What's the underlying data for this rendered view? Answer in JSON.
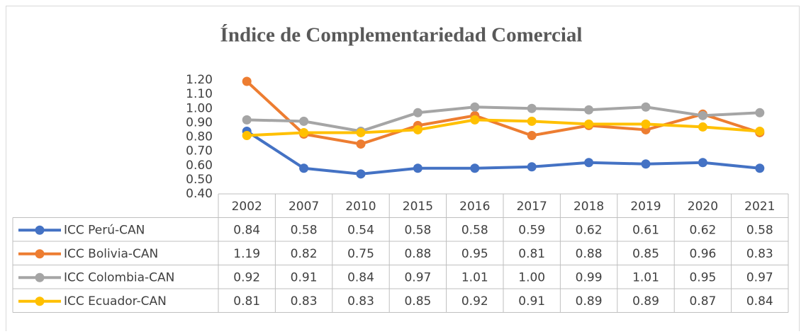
{
  "chart_data": {
    "type": "line",
    "title": "Índice de Complementariedad Comercial",
    "categories": [
      "2002",
      "2007",
      "2010",
      "2015",
      "2016",
      "2017",
      "2018",
      "2019",
      "2020",
      "2021"
    ],
    "series": [
      {
        "name": "ICC Perú-CAN",
        "color": "#4472c4",
        "values": [
          0.84,
          0.58,
          0.54,
          0.58,
          0.58,
          0.59,
          0.62,
          0.61,
          0.62,
          0.58
        ],
        "value_labels": [
          "0.84",
          "0.58",
          "0.54",
          "0.58",
          "0.58",
          "0.59",
          "0.62",
          "0.61",
          "0.62",
          "0.58"
        ]
      },
      {
        "name": "ICC Bolivia-CAN",
        "color": "#ed7d31",
        "values": [
          1.19,
          0.82,
          0.75,
          0.88,
          0.95,
          0.81,
          0.88,
          0.85,
          0.96,
          0.83
        ],
        "value_labels": [
          "1.19",
          "0.82",
          "0.75",
          "0.88",
          "0.95",
          "0.81",
          "0.88",
          "0.85",
          "0.96",
          "0.83"
        ]
      },
      {
        "name": "ICC Colombia-CAN",
        "color": "#a5a5a5",
        "values": [
          0.92,
          0.91,
          0.84,
          0.97,
          1.01,
          1.0,
          0.99,
          1.01,
          0.95,
          0.97
        ],
        "value_labels": [
          "0.92",
          "0.91",
          "0.84",
          "0.97",
          "1.01",
          "1.00",
          "0.99",
          "1.01",
          "0.95",
          "0.97"
        ]
      },
      {
        "name": "ICC Ecuador-CAN",
        "color": "#ffc000",
        "values": [
          0.81,
          0.83,
          0.83,
          0.85,
          0.92,
          0.91,
          0.89,
          0.89,
          0.87,
          0.84
        ],
        "value_labels": [
          "0.81",
          "0.83",
          "0.83",
          "0.85",
          "0.92",
          "0.91",
          "0.89",
          "0.89",
          "0.87",
          "0.84"
        ]
      }
    ],
    "ylim": [
      0.4,
      1.2
    ],
    "yticks": [
      {
        "value": 0.4,
        "label": "0.40"
      },
      {
        "value": 0.5,
        "label": "0.50"
      },
      {
        "value": 0.6,
        "label": "0.60"
      },
      {
        "value": 0.7,
        "label": "0.70"
      },
      {
        "value": 0.8,
        "label": "0.80"
      },
      {
        "value": 0.9,
        "label": "0.90"
      },
      {
        "value": 1.0,
        "label": "1.00"
      },
      {
        "value": 1.1,
        "label": "1.10"
      },
      {
        "value": 1.2,
        "label": "1.20"
      }
    ],
    "grid": false
  }
}
